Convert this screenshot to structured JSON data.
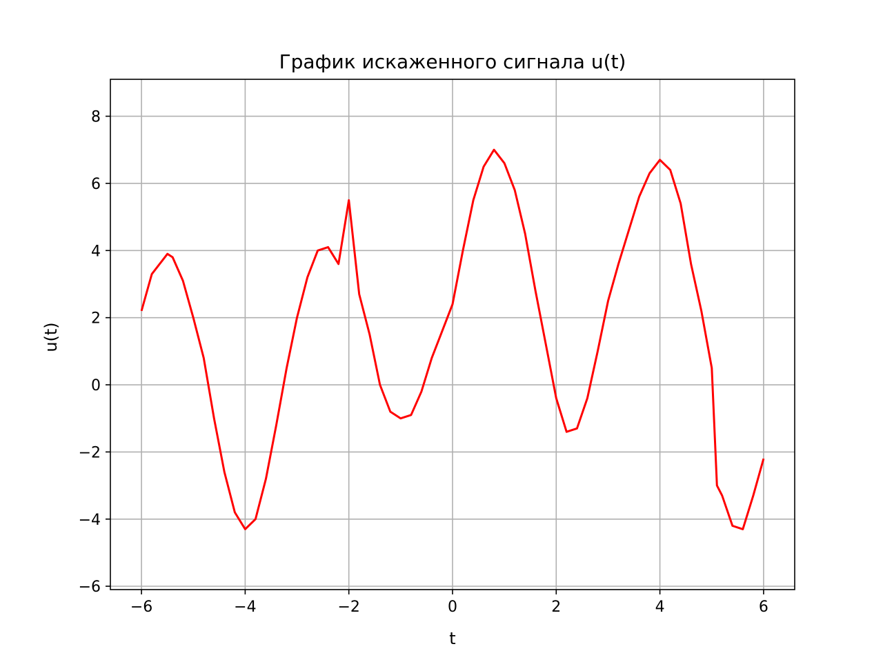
{
  "chart_data": {
    "type": "line",
    "title": "График искаженного сигнала u(t)",
    "xlabel": "t",
    "ylabel": "u(t)",
    "xlim": [
      -6.6,
      6.6
    ],
    "ylim": [
      -6.1,
      9.1
    ],
    "x_ticks": [
      -6,
      -4,
      -2,
      0,
      2,
      4,
      6
    ],
    "x_tick_labels": [
      "−6",
      "−4",
      "−2",
      "0",
      "2",
      "4",
      "6"
    ],
    "y_ticks": [
      -6,
      -4,
      -2,
      0,
      2,
      4,
      6,
      8
    ],
    "y_tick_labels": [
      "−6",
      "−4",
      "−2",
      "0",
      "2",
      "4",
      "6",
      "8"
    ],
    "grid": true,
    "series": [
      {
        "color": "#ff0000",
        "x": [
          -6.0,
          -5.8,
          -5.6,
          -5.5,
          -5.4,
          -5.2,
          -5.0,
          -4.8,
          -4.6,
          -4.4,
          -4.2,
          -4.0,
          -3.8,
          -3.6,
          -3.4,
          -3.2,
          -3.0,
          -2.8,
          -2.6,
          -2.4,
          -2.2,
          -2.0,
          -1.8,
          -1.6,
          -1.4,
          -1.2,
          -1.0,
          -0.8,
          -0.6,
          -0.4,
          -0.2,
          0.0,
          0.2,
          0.4,
          0.6,
          0.8,
          1.0,
          1.2,
          1.4,
          1.6,
          1.8,
          2.0,
          2.2,
          2.4,
          2.6,
          2.8,
          3.0,
          3.2,
          3.4,
          3.6,
          3.8,
          4.0,
          4.2,
          4.4,
          4.6,
          4.8,
          5.0,
          5.1,
          5.2,
          5.4,
          5.6,
          5.8,
          6.0
        ],
        "y": [
          2.2,
          3.3,
          3.7,
          3.9,
          3.8,
          3.1,
          2.0,
          0.8,
          -1.0,
          -2.6,
          -3.8,
          -4.3,
          -4.0,
          -2.8,
          -1.2,
          0.5,
          2.0,
          3.2,
          4.0,
          4.1,
          3.6,
          5.5,
          2.7,
          1.5,
          0.0,
          -0.8,
          -1.0,
          -0.9,
          -0.2,
          0.8,
          1.6,
          2.4,
          4.0,
          5.5,
          6.5,
          7.0,
          6.6,
          5.8,
          4.5,
          2.8,
          1.2,
          -0.4,
          -1.4,
          -1.3,
          -0.4,
          1.0,
          2.5,
          3.6,
          4.6,
          5.6,
          6.3,
          6.7,
          6.4,
          5.4,
          3.6,
          2.2,
          0.5,
          -3.0,
          -3.3,
          -4.2,
          -4.3,
          -3.3,
          -2.2
        ]
      }
    ]
  }
}
